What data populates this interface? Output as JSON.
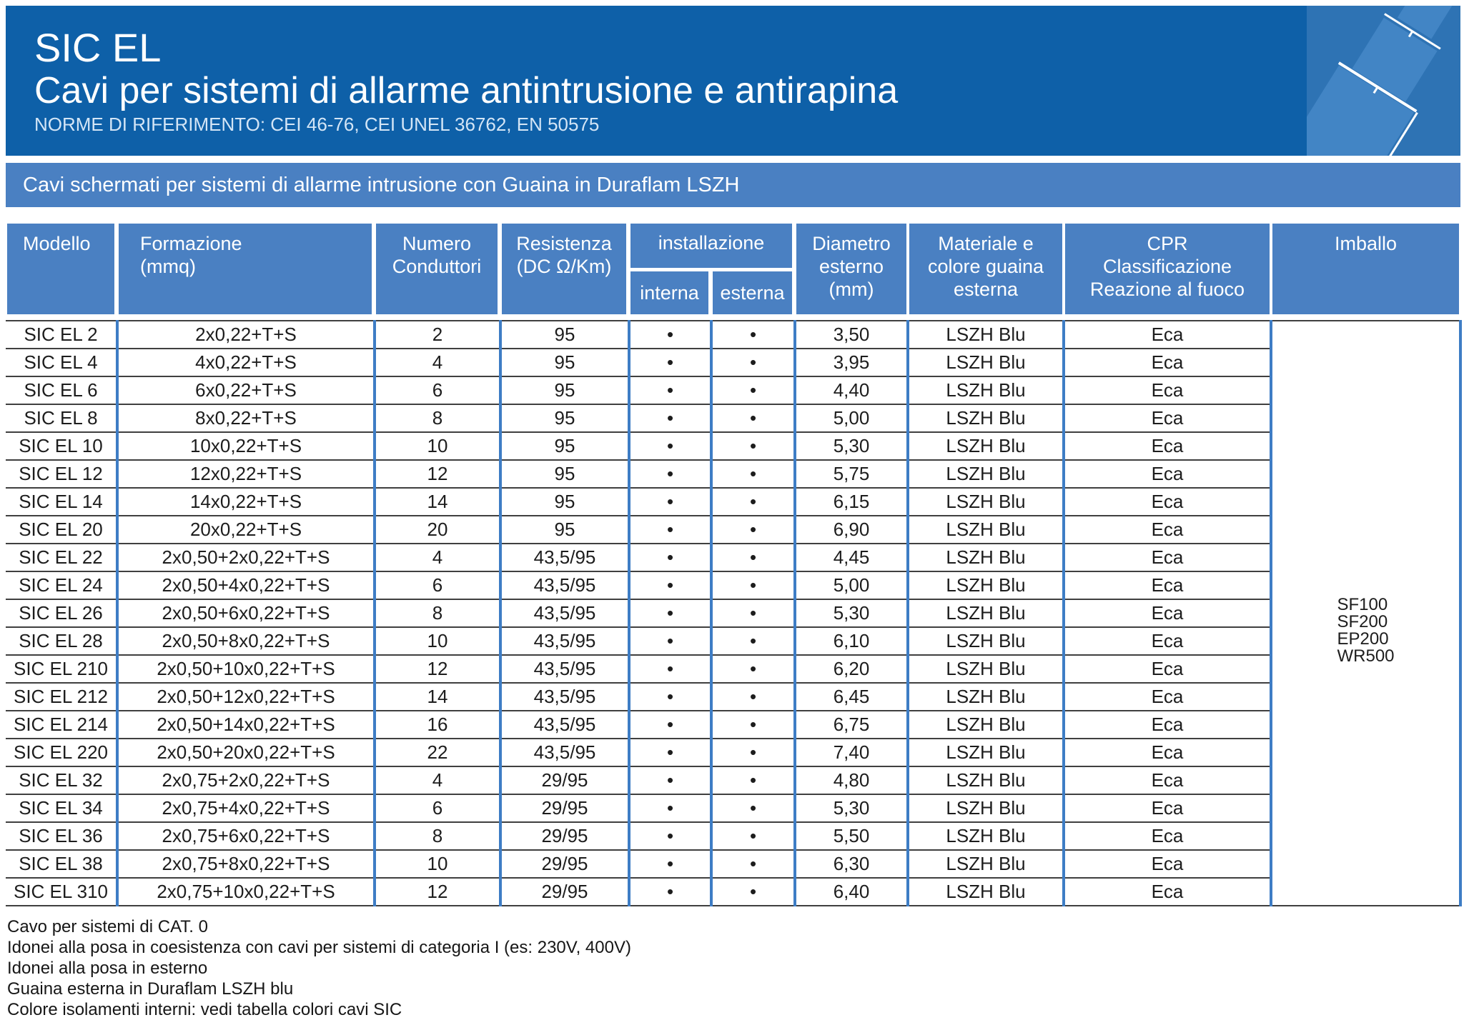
{
  "colors": {
    "banner_blue": "#0E60A8",
    "panel_blue": "#4A80C2",
    "icon_bg": "#2E73B4",
    "icon_cable": "#4285C5",
    "grid_blue": "#3E7DC5",
    "line_dark": "#3F3F3F",
    "ink": "#1D1D1D",
    "norms_text": "#D3E5F6"
  },
  "header": {
    "title": "SIC EL",
    "subtitle": "Cavi per sistemi di allarme antintrusione e antirapina",
    "norms": "NORME DI RIFERIMENTO: CEI 46-76, CEI UNEL 36762, EN 50575"
  },
  "section": {
    "title": "Cavi schermati per sistemi di allarme intrusione con Guaina in Duraflam LSZH"
  },
  "table": {
    "headers": {
      "modello": "Modello",
      "formazione": "Formazione\n(mmq)",
      "numero": "Numero\nConduttori",
      "resistenza": "Resistenza\n(DC Ω/Km)",
      "installazione": "installazione",
      "interna": "interna",
      "esterna": "esterna",
      "diametro": "Diametro\nesterno\n(mm)",
      "materiale": "Materiale e\ncolore guaina\nesterna",
      "cpr": "CPR\nClassificazione\nReazione al fuoco",
      "imballo": "Imballo"
    },
    "rows": [
      {
        "modello": "SIC EL 2",
        "formazione": "2x0,22+T+S",
        "conduttori": "2",
        "resistenza": "95",
        "interna": "•",
        "esterna": "•",
        "diametro": "3,50",
        "guaina": "LSZH Blu",
        "cpr": "Eca"
      },
      {
        "modello": "SIC EL 4",
        "formazione": "4x0,22+T+S",
        "conduttori": "4",
        "resistenza": "95",
        "interna": "•",
        "esterna": "•",
        "diametro": "3,95",
        "guaina": "LSZH Blu",
        "cpr": "Eca"
      },
      {
        "modello": "SIC EL 6",
        "formazione": "6x0,22+T+S",
        "conduttori": "6",
        "resistenza": "95",
        "interna": "•",
        "esterna": "•",
        "diametro": "4,40",
        "guaina": "LSZH Blu",
        "cpr": "Eca"
      },
      {
        "modello": "SIC EL 8",
        "formazione": "8x0,22+T+S",
        "conduttori": "8",
        "resistenza": "95",
        "interna": "•",
        "esterna": "•",
        "diametro": "5,00",
        "guaina": "LSZH Blu",
        "cpr": "Eca"
      },
      {
        "modello": "SIC EL 10",
        "formazione": "10x0,22+T+S",
        "conduttori": "10",
        "resistenza": "95",
        "interna": "•",
        "esterna": "•",
        "diametro": "5,30",
        "guaina": "LSZH Blu",
        "cpr": "Eca"
      },
      {
        "modello": "SIC EL 12",
        "formazione": "12x0,22+T+S",
        "conduttori": "12",
        "resistenza": "95",
        "interna": "•",
        "esterna": "•",
        "diametro": "5,75",
        "guaina": "LSZH Blu",
        "cpr": "Eca"
      },
      {
        "modello": "SIC EL 14",
        "formazione": "14x0,22+T+S",
        "conduttori": "14",
        "resistenza": "95",
        "interna": "•",
        "esterna": "•",
        "diametro": "6,15",
        "guaina": "LSZH Blu",
        "cpr": "Eca"
      },
      {
        "modello": "SIC EL 20",
        "formazione": "20x0,22+T+S",
        "conduttori": "20",
        "resistenza": "95",
        "interna": "•",
        "esterna": "•",
        "diametro": "6,90",
        "guaina": "LSZH Blu",
        "cpr": "Eca"
      },
      {
        "modello": "SIC EL 22",
        "formazione": "2x0,50+2x0,22+T+S",
        "conduttori": "4",
        "resistenza": "43,5/95",
        "interna": "•",
        "esterna": "•",
        "diametro": "4,45",
        "guaina": "LSZH Blu",
        "cpr": "Eca"
      },
      {
        "modello": "SIC EL 24",
        "formazione": "2x0,50+4x0,22+T+S",
        "conduttori": "6",
        "resistenza": "43,5/95",
        "interna": "•",
        "esterna": "•",
        "diametro": "5,00",
        "guaina": "LSZH Blu",
        "cpr": "Eca"
      },
      {
        "modello": "SIC EL 26",
        "formazione": "2x0,50+6x0,22+T+S",
        "conduttori": "8",
        "resistenza": "43,5/95",
        "interna": "•",
        "esterna": "•",
        "diametro": "5,30",
        "guaina": "LSZH Blu",
        "cpr": "Eca"
      },
      {
        "modello": "SIC EL 28",
        "formazione": "2x0,50+8x0,22+T+S",
        "conduttori": "10",
        "resistenza": "43,5/95",
        "interna": "•",
        "esterna": "•",
        "diametro": "6,10",
        "guaina": "LSZH Blu",
        "cpr": "Eca"
      },
      {
        "modello": "SIC EL 210",
        "formazione": "2x0,50+10x0,22+T+S",
        "conduttori": "12",
        "resistenza": "43,5/95",
        "interna": "•",
        "esterna": "•",
        "diametro": "6,20",
        "guaina": "LSZH Blu",
        "cpr": "Eca"
      },
      {
        "modello": "SIC EL 212",
        "formazione": "2x0,50+12x0,22+T+S",
        "conduttori": "14",
        "resistenza": "43,5/95",
        "interna": "•",
        "esterna": "•",
        "diametro": "6,45",
        "guaina": "LSZH Blu",
        "cpr": "Eca"
      },
      {
        "modello": "SIC EL 214",
        "formazione": "2x0,50+14x0,22+T+S",
        "conduttori": "16",
        "resistenza": "43,5/95",
        "interna": "•",
        "esterna": "•",
        "diametro": "6,75",
        "guaina": "LSZH Blu",
        "cpr": "Eca"
      },
      {
        "modello": "SIC EL 220",
        "formazione": "2x0,50+20x0,22+T+S",
        "conduttori": "22",
        "resistenza": "43,5/95",
        "interna": "•",
        "esterna": "•",
        "diametro": "7,40",
        "guaina": "LSZH Blu",
        "cpr": "Eca"
      },
      {
        "modello": "SIC EL 32",
        "formazione": "2x0,75+2x0,22+T+S",
        "conduttori": "4",
        "resistenza": "29/95",
        "interna": "•",
        "esterna": "•",
        "diametro": "4,80",
        "guaina": "LSZH Blu",
        "cpr": "Eca"
      },
      {
        "modello": "SIC EL 34",
        "formazione": "2x0,75+4x0,22+T+S",
        "conduttori": "6",
        "resistenza": "29/95",
        "interna": "•",
        "esterna": "•",
        "diametro": "5,30",
        "guaina": "LSZH Blu",
        "cpr": "Eca"
      },
      {
        "modello": "SIC EL 36",
        "formazione": "2x0,75+6x0,22+T+S",
        "conduttori": "8",
        "resistenza": "29/95",
        "interna": "•",
        "esterna": "•",
        "diametro": "5,50",
        "guaina": "LSZH Blu",
        "cpr": "Eca"
      },
      {
        "modello": "SIC EL 38",
        "formazione": "2x0,75+8x0,22+T+S",
        "conduttori": "10",
        "resistenza": "29/95",
        "interna": "•",
        "esterna": "•",
        "diametro": "6,30",
        "guaina": "LSZH Blu",
        "cpr": "Eca"
      },
      {
        "modello": "SIC EL 310",
        "formazione": "2x0,75+10x0,22+T+S",
        "conduttori": "12",
        "resistenza": "29/95",
        "interna": "•",
        "esterna": "•",
        "diametro": "6,40",
        "guaina": "LSZH Blu",
        "cpr": "Eca"
      }
    ],
    "imballo_options": [
      "SF100",
      "SF200",
      "EP200",
      "WR500"
    ]
  },
  "notes": [
    "Cavo per sistemi di CAT. 0",
    "Idonei alla posa in coesistenza con cavi per sistemi di categoria I (es: 230V, 400V)",
    "Idonei alla posa in esterno",
    "Guaina esterna in Duraflam LSZH blu",
    "Colore isolamenti interni: vedi tabella colori cavi SIC"
  ]
}
